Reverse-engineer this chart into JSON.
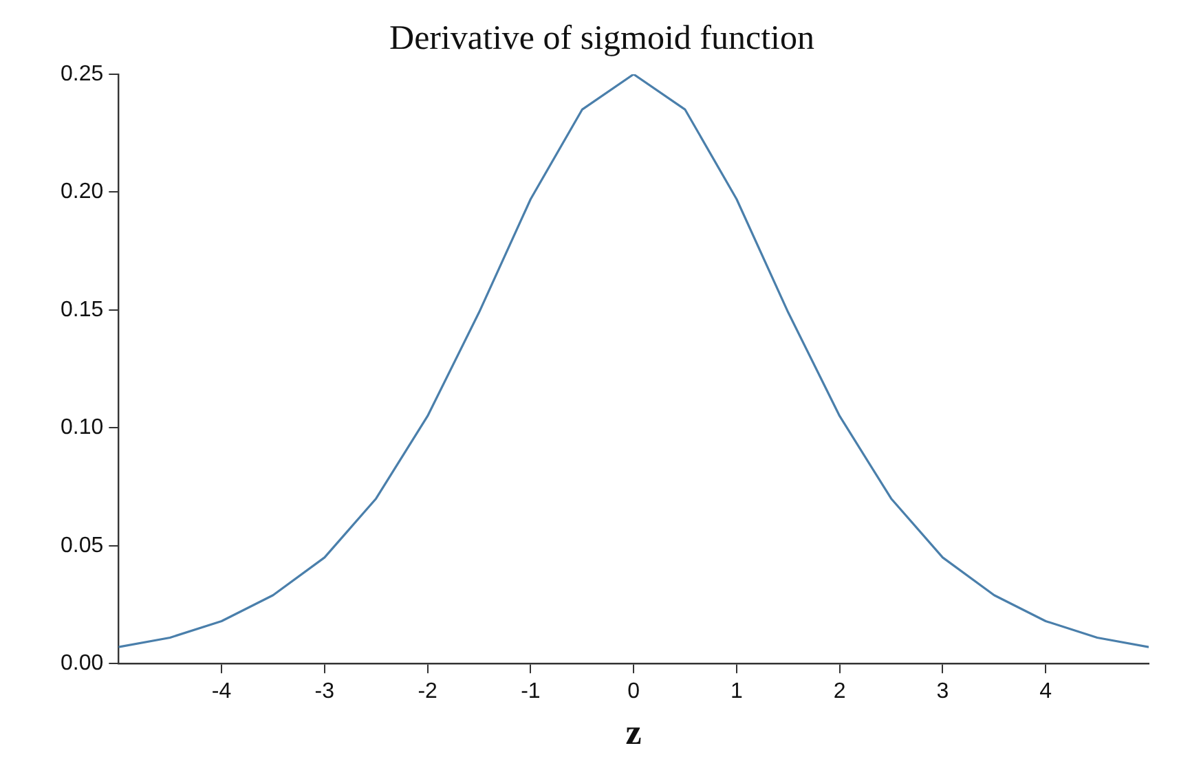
{
  "chart_data": {
    "type": "line",
    "title": "Derivative of sigmoid function",
    "xlabel": "z",
    "marker": "none",
    "color": "#4a7fab",
    "x": [
      -5,
      -4.5,
      -4,
      -3.5,
      -3,
      -2.5,
      -2,
      -1.5,
      -1,
      -0.5,
      0,
      0.5,
      1,
      1.5,
      2,
      2.5,
      3,
      3.5,
      4,
      4.5,
      5
    ],
    "values": [
      0.007,
      0.011,
      0.018,
      0.029,
      0.045,
      0.07,
      0.105,
      0.149,
      0.197,
      0.235,
      0.25,
      0.235,
      0.197,
      0.149,
      0.105,
      0.07,
      0.045,
      0.029,
      0.018,
      0.011,
      0.007
    ],
    "xlim": [
      -5,
      5
    ],
    "xticks": [
      -4,
      -3,
      -2,
      -1,
      0,
      1,
      2,
      3,
      4
    ],
    "ylim": [
      0,
      0.25
    ],
    "yticks": [
      {
        "value": 0,
        "label": "0.00"
      },
      {
        "value": 0.05,
        "label": "0.05"
      },
      {
        "value": 0.1,
        "label": "0.10"
      },
      {
        "value": 0.15,
        "label": "0.15"
      },
      {
        "value": 0.2,
        "label": "0.20"
      },
      {
        "value": 0.25,
        "label": "0.25"
      }
    ]
  }
}
